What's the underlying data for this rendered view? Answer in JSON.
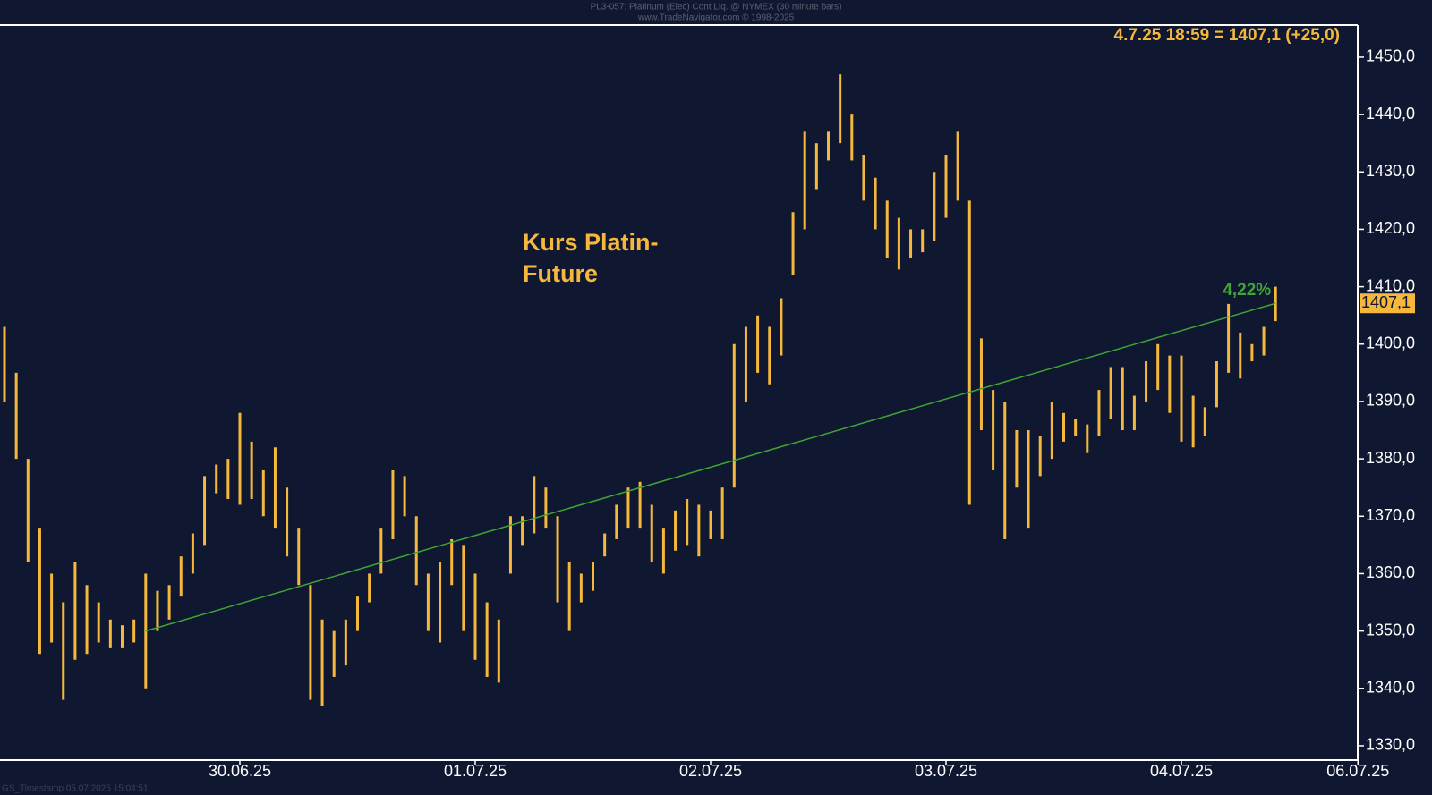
{
  "chart_data": {
    "type": "hl-bars",
    "header": [
      "PL3-057: Platinum (Elec) Cont Liq. @ NYMEX (30 minute bars)",
      "www.TradeNavigator.com © 1998-2025"
    ],
    "quote": "4.7.25 18:59 = 1407,1 (+25,0)",
    "annotation": [
      "Kurs Platin-",
      "Future"
    ],
    "footer": "GS_Timestamp 05.07.2025 15:04:51",
    "color": "#f5b83d",
    "categories": [
      null,
      null,
      null,
      null,
      null,
      null,
      null,
      null,
      null,
      null,
      null,
      null,
      null,
      null,
      null,
      null,
      null,
      null,
      null,
      null,
      "30.06.25",
      null,
      null,
      null,
      null,
      null,
      null,
      null,
      null,
      null,
      null,
      null,
      null,
      null,
      null,
      null,
      null,
      null,
      null,
      null,
      "01.07.25",
      null,
      null,
      null,
      null,
      null,
      null,
      null,
      null,
      null,
      null,
      null,
      null,
      null,
      null,
      null,
      null,
      null,
      null,
      null,
      "02.07.25",
      null,
      null,
      null,
      null,
      null,
      null,
      null,
      null,
      null,
      null,
      null,
      null,
      null,
      null,
      null,
      null,
      null,
      null,
      null,
      "03.07.25",
      null,
      null,
      null,
      null,
      null,
      null,
      null,
      null,
      null,
      null,
      null,
      null,
      null,
      null,
      null,
      null,
      null,
      null,
      null,
      "04.07.25",
      null,
      null,
      null,
      null,
      null,
      null,
      null,
      null,
      null,
      null,
      null,
      null,
      null,
      null,
      "06.07.25"
    ],
    "high": [
      1403,
      1395,
      1380,
      1368,
      1360,
      1355,
      1362,
      1358,
      1355,
      1352,
      1351,
      1352,
      1360,
      1357,
      1358,
      1363,
      1367,
      1377,
      1379,
      1380,
      1388,
      1383,
      1378,
      1382,
      1375,
      1368,
      1358,
      1352,
      1350,
      1352,
      1356,
      1360,
      1368,
      1378,
      1377,
      1370,
      1360,
      1362,
      1366,
      1365,
      1360,
      1355,
      1352,
      1370,
      1370,
      1377,
      1375,
      1370,
      1362,
      1360,
      1362,
      1367,
      1372,
      1375,
      1376,
      1372,
      1368,
      1371,
      1373,
      1372,
      1371,
      1375,
      1400,
      1403,
      1405,
      1403,
      1408,
      1423,
      1437,
      1435,
      1437,
      1447,
      1440,
      1433,
      1429,
      1425,
      1422,
      1420,
      1420,
      1430,
      1433,
      1437,
      1425,
      1401,
      1392,
      1390,
      1385,
      1385,
      1384,
      1390,
      1388,
      1387,
      1386,
      1392,
      1396,
      1396,
      1391,
      1397,
      1400,
      1398,
      1398,
      1391,
      1389,
      1397,
      1407,
      1402,
      1400,
      1403,
      1410,
      null,
      null,
      null,
      null,
      null,
      null,
      null
    ],
    "low": [
      1390,
      1380,
      1362,
      1346,
      1348,
      1338,
      1345,
      1346,
      1348,
      1347,
      1347,
      1348,
      1340,
      1350,
      1352,
      1356,
      1360,
      1365,
      1374,
      1373,
      1372,
      1373,
      1370,
      1368,
      1363,
      1358,
      1338,
      1337,
      1342,
      1344,
      1350,
      1355,
      1360,
      1366,
      1370,
      1358,
      1350,
      1348,
      1358,
      1350,
      1345,
      1342,
      1341,
      1360,
      1365,
      1367,
      1368,
      1355,
      1350,
      1355,
      1357,
      1363,
      1366,
      1368,
      1368,
      1362,
      1360,
      1364,
      1365,
      1363,
      1366,
      1366,
      1375,
      1390,
      1395,
      1393,
      1398,
      1412,
      1420,
      1427,
      1432,
      1435,
      1432,
      1425,
      1420,
      1415,
      1413,
      1415,
      1416,
      1418,
      1422,
      1425,
      1372,
      1385,
      1378,
      1366,
      1375,
      1368,
      1377,
      1380,
      1383,
      1384,
      1381,
      1384,
      1387,
      1385,
      1385,
      1390,
      1392,
      1388,
      1383,
      1382,
      1384,
      1389,
      1395,
      1394,
      1397,
      1398,
      1404,
      null,
      null,
      null,
      null,
      null,
      null,
      null
    ],
    "trend_line": {
      "from": 1350,
      "to": 1407.1,
      "label": "4,22%",
      "color": "#3fa535"
    },
    "last_value": {
      "value": 1407.1,
      "label": "1407,1"
    },
    "ylim": [
      1327.5,
      1455.6
    ],
    "yticks": [
      {
        "value": 1330,
        "label": "1330,0"
      },
      {
        "value": 1340,
        "label": "1340,0"
      },
      {
        "value": 1350,
        "label": "1350,0"
      },
      {
        "value": 1360,
        "label": "1360,0"
      },
      {
        "value": 1370,
        "label": "1370,0"
      },
      {
        "value": 1380,
        "label": "1380,0"
      },
      {
        "value": 1390,
        "label": "1390,0"
      },
      {
        "value": 1400,
        "label": "1400,0"
      },
      {
        "value": 1410,
        "label": "1410,0"
      },
      {
        "value": 1420,
        "label": "1420,0"
      },
      {
        "value": 1430,
        "label": "1430,0"
      },
      {
        "value": 1440,
        "label": "1440,0"
      },
      {
        "value": 1450,
        "label": "1450,0"
      }
    ]
  }
}
